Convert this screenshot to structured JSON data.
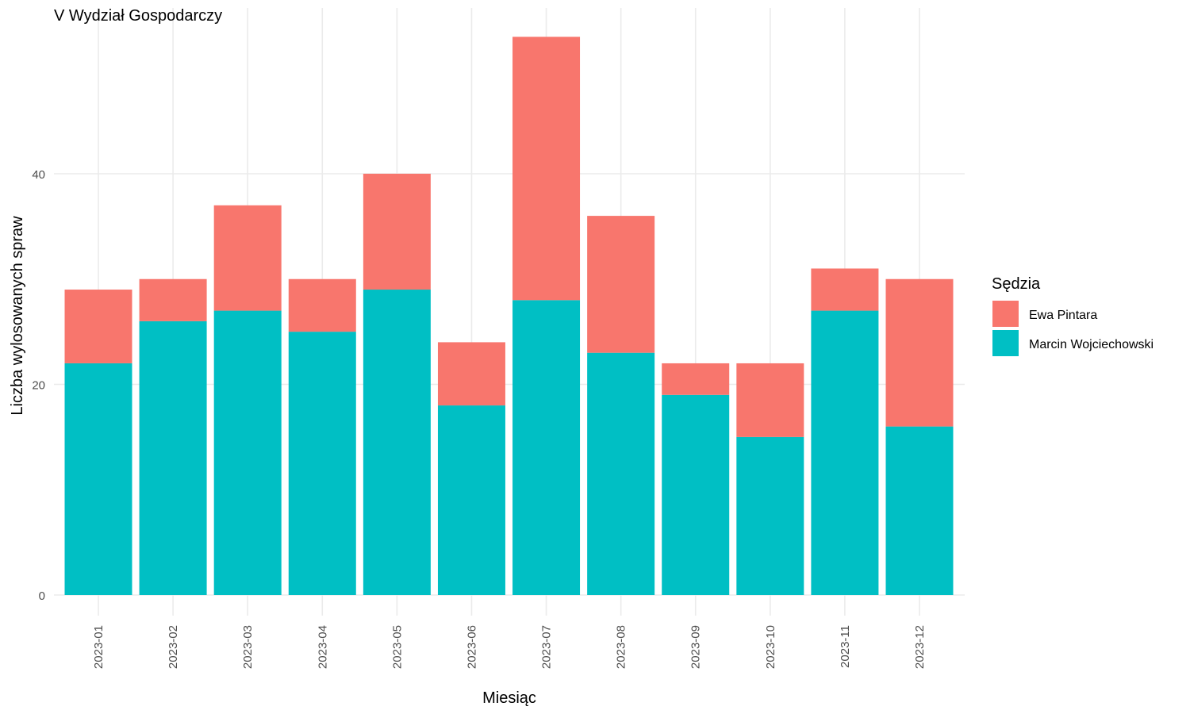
{
  "chart_data": {
    "type": "bar",
    "stacked": true,
    "title": "V Wydział Gospodarczy",
    "xlabel": "Miesiąc",
    "ylabel": "Liczba wylosowanych spraw",
    "ylim": [
      0,
      55
    ],
    "yticks": [
      0,
      20,
      40
    ],
    "grid": true,
    "legend_position": "right",
    "legend_title": "Sędzia",
    "categories": [
      "2023-01",
      "2023-02",
      "2023-03",
      "2023-04",
      "2023-05",
      "2023-06",
      "2023-07",
      "2023-08",
      "2023-09",
      "2023-10",
      "2023-11",
      "2023-12"
    ],
    "series": [
      {
        "name": "Marcin Wojciechowski",
        "color": "#00BFC4",
        "values": [
          22,
          26,
          27,
          25,
          29,
          18,
          28,
          23,
          19,
          15,
          27,
          16
        ]
      },
      {
        "name": "Ewa Pintara",
        "color": "#F8766D",
        "values": [
          7,
          4,
          10,
          5,
          11,
          6,
          25,
          13,
          3,
          7,
          4,
          14
        ]
      }
    ],
    "legend_order": [
      1,
      0
    ]
  }
}
